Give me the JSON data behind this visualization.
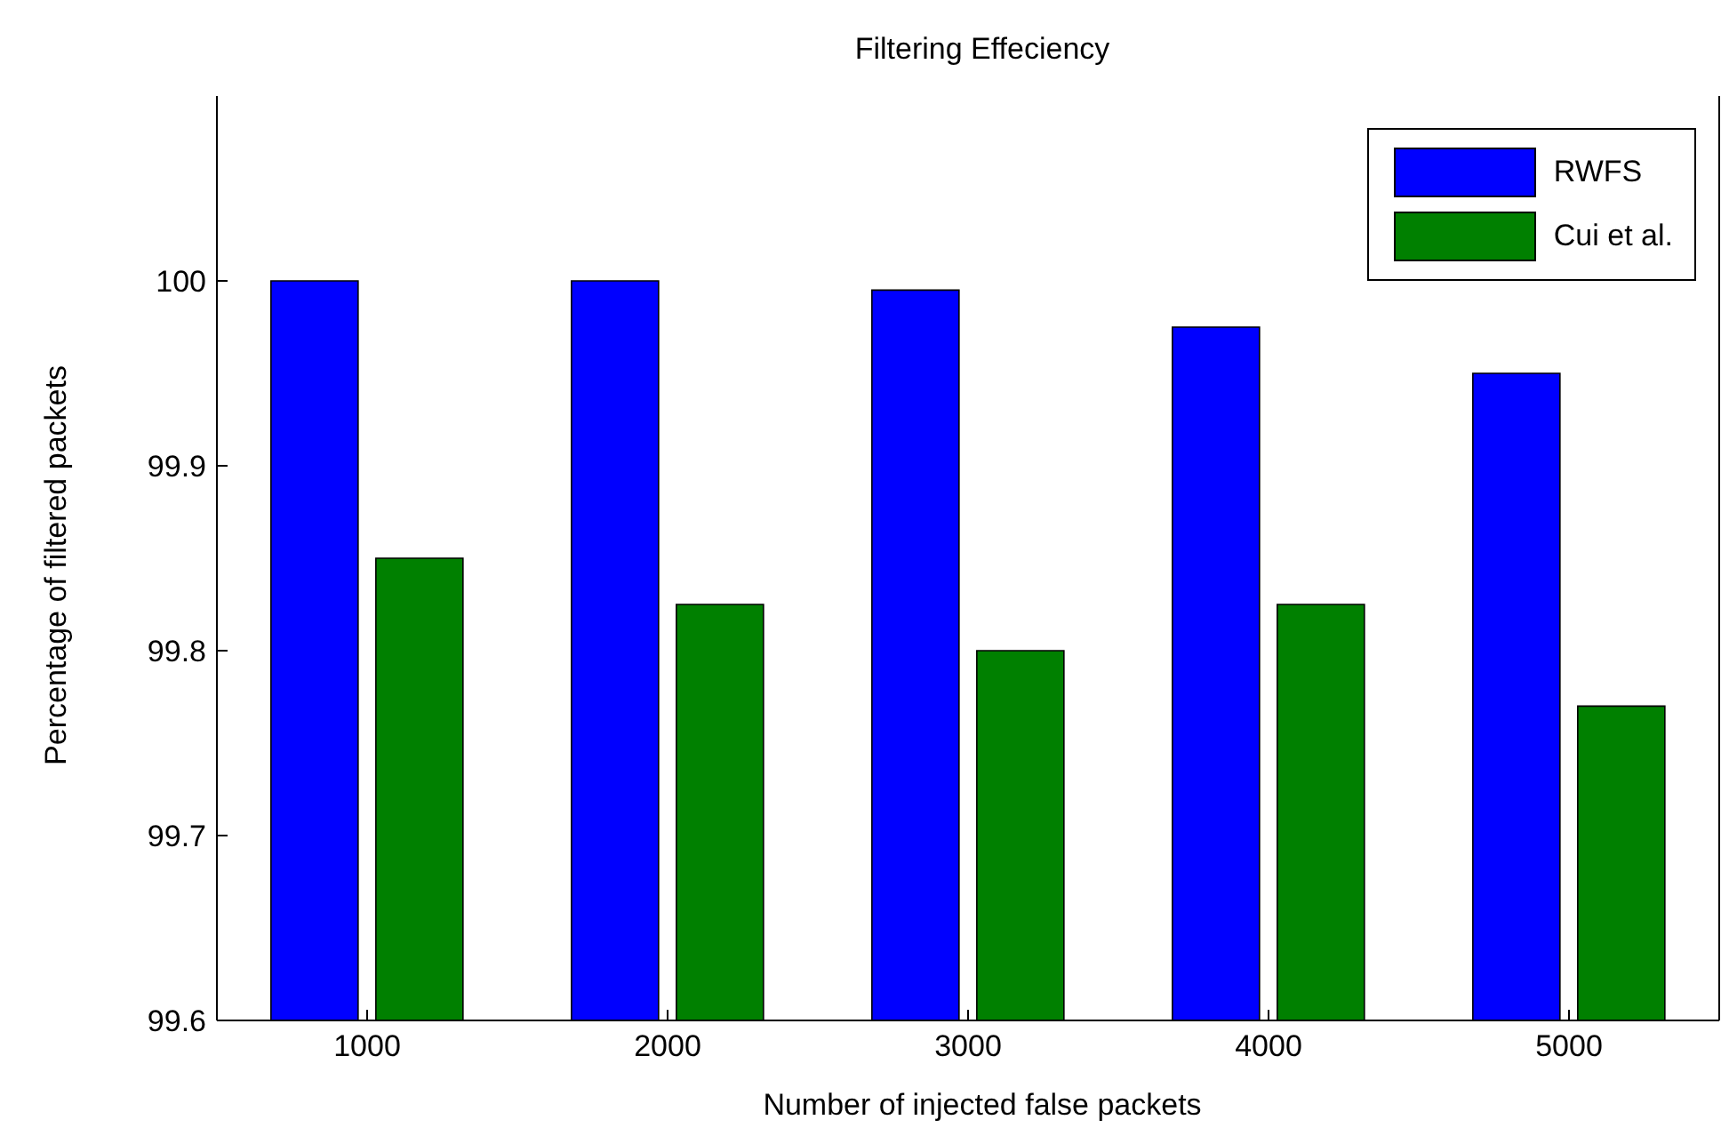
{
  "chart_data": {
    "type": "bar",
    "title": "Filtering Effeciency",
    "xlabel": "Number of injected false packets",
    "ylabel": "Percentage of filtered packets",
    "categories": [
      "1000",
      "2000",
      "3000",
      "4000",
      "5000"
    ],
    "series": [
      {
        "name": "RWFS",
        "color": "#0000ff",
        "values": [
          100,
          100,
          99.995,
          99.975,
          99.95
        ]
      },
      {
        "name": "Cui et al.",
        "color": "#008000",
        "values": [
          99.85,
          99.825,
          99.8,
          99.825,
          99.77
        ]
      }
    ],
    "ylim": [
      99.6,
      100.1
    ],
    "yticks": [
      99.6,
      99.7,
      99.8,
      99.9,
      100
    ],
    "grid": false,
    "legend": "top right"
  }
}
